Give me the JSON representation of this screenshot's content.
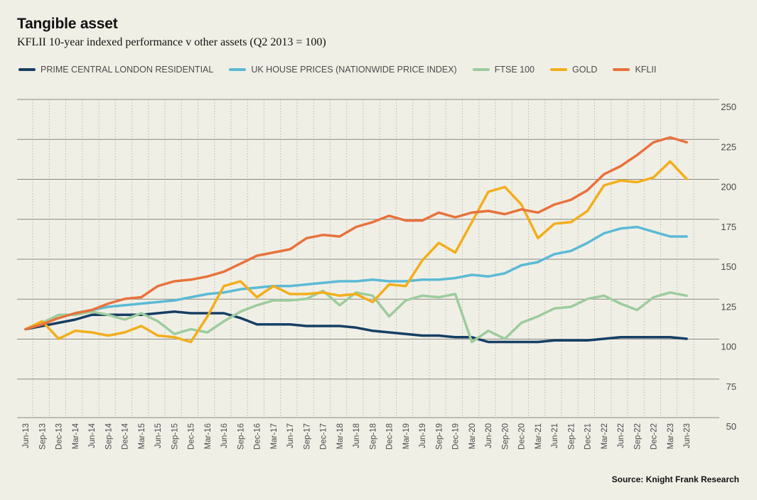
{
  "title": "Tangible asset",
  "subtitle": "KFLII 10-year indexed performance v other assets (Q2 2013 = 100)",
  "source": "Source: Knight Frank Research",
  "chart_data": {
    "type": "line",
    "title": "Tangible asset",
    "subtitle": "KFLII 10-year indexed performance v other assets (Q2 2013 = 100)",
    "legend_position": "top",
    "grid": "vertical dotted, horizontal solid",
    "y_axis_side": "right",
    "ylim": [
      50,
      250
    ],
    "yticks": [
      250,
      225,
      200,
      175,
      150,
      125,
      100,
      75,
      50
    ],
    "x": [
      "Jun-13",
      "Sep-13",
      "Dec-13",
      "Mar-14",
      "Jun-14",
      "Sep-14",
      "Dec-14",
      "Mar-15",
      "Jun-15",
      "Sep-15",
      "Dec-15",
      "Mar-16",
      "Jun-16",
      "Sep-16",
      "Dec-16",
      "Mar-17",
      "Jun-17",
      "Sep-17",
      "Dec-17",
      "Mar-18",
      "Jun-18",
      "Sep-18",
      "Dec-18",
      "Mar-19",
      "Jun-19",
      "Sep-19",
      "Dec-19",
      "Mar-20",
      "Jun-20",
      "Sep-20",
      "Dec-20",
      "Mar-21",
      "Jun-21",
      "Sep-21",
      "Dec-21",
      "Mar-22",
      "Jun-22",
      "Sep-22",
      "Dec-22",
      "Mar-23",
      "Jun-23"
    ],
    "series": [
      {
        "name": "PRIME CENTRAL LONDON RESIDENTIAL",
        "color": "#163f64",
        "values": [
          100,
          102,
          104,
          106,
          109,
          109,
          109,
          109,
          110,
          111,
          110,
          110,
          110,
          107,
          103,
          103,
          103,
          102,
          102,
          102,
          101,
          99,
          98,
          97,
          96,
          96,
          95,
          95,
          92,
          92,
          92,
          92,
          93,
          93,
          93,
          94,
          95,
          95,
          95,
          95,
          94
        ]
      },
      {
        "name": "UK HOUSE PRICES (NATIONWIDE PRICE INDEX)",
        "color": "#5bbad5",
        "values": [
          100,
          104,
          107,
          110,
          112,
          114,
          115,
          116,
          117,
          118,
          120,
          122,
          123,
          125,
          126,
          127,
          127,
          128,
          129,
          130,
          130,
          131,
          130,
          130,
          131,
          131,
          132,
          134,
          133,
          135,
          140,
          142,
          147,
          149,
          154,
          160,
          163,
          164,
          161,
          158,
          158
        ]
      },
      {
        "name": "FTSE 100",
        "color": "#9dcc9d",
        "values": [
          100,
          104,
          109,
          109,
          111,
          109,
          106,
          110,
          105,
          97,
          100,
          98,
          105,
          111,
          115,
          118,
          118,
          119,
          124,
          115,
          123,
          121,
          108,
          118,
          121,
          120,
          122,
          92,
          99,
          94,
          104,
          108,
          113,
          114,
          119,
          121,
          116,
          112,
          120,
          123,
          121
        ]
      },
      {
        "name": "GOLD",
        "color": "#f2ae1c",
        "values": [
          100,
          105,
          94,
          99,
          98,
          96,
          98,
          102,
          96,
          95,
          92,
          108,
          127,
          130,
          120,
          127,
          122,
          122,
          123,
          121,
          122,
          117,
          128,
          127,
          143,
          154,
          148,
          167,
          186,
          189,
          178,
          157,
          166,
          167,
          174,
          190,
          193,
          192,
          195,
          205,
          194
        ]
      },
      {
        "name": "KFLII",
        "color": "#e8723c",
        "values": [
          100,
          103,
          107,
          110,
          112,
          116,
          119,
          120,
          127,
          130,
          131,
          133,
          136,
          141,
          146,
          148,
          150,
          157,
          159,
          158,
          164,
          167,
          171,
          168,
          168,
          173,
          170,
          173,
          174,
          172,
          175,
          173,
          178,
          181,
          187,
          197,
          202,
          209,
          217,
          220,
          217
        ]
      }
    ]
  }
}
